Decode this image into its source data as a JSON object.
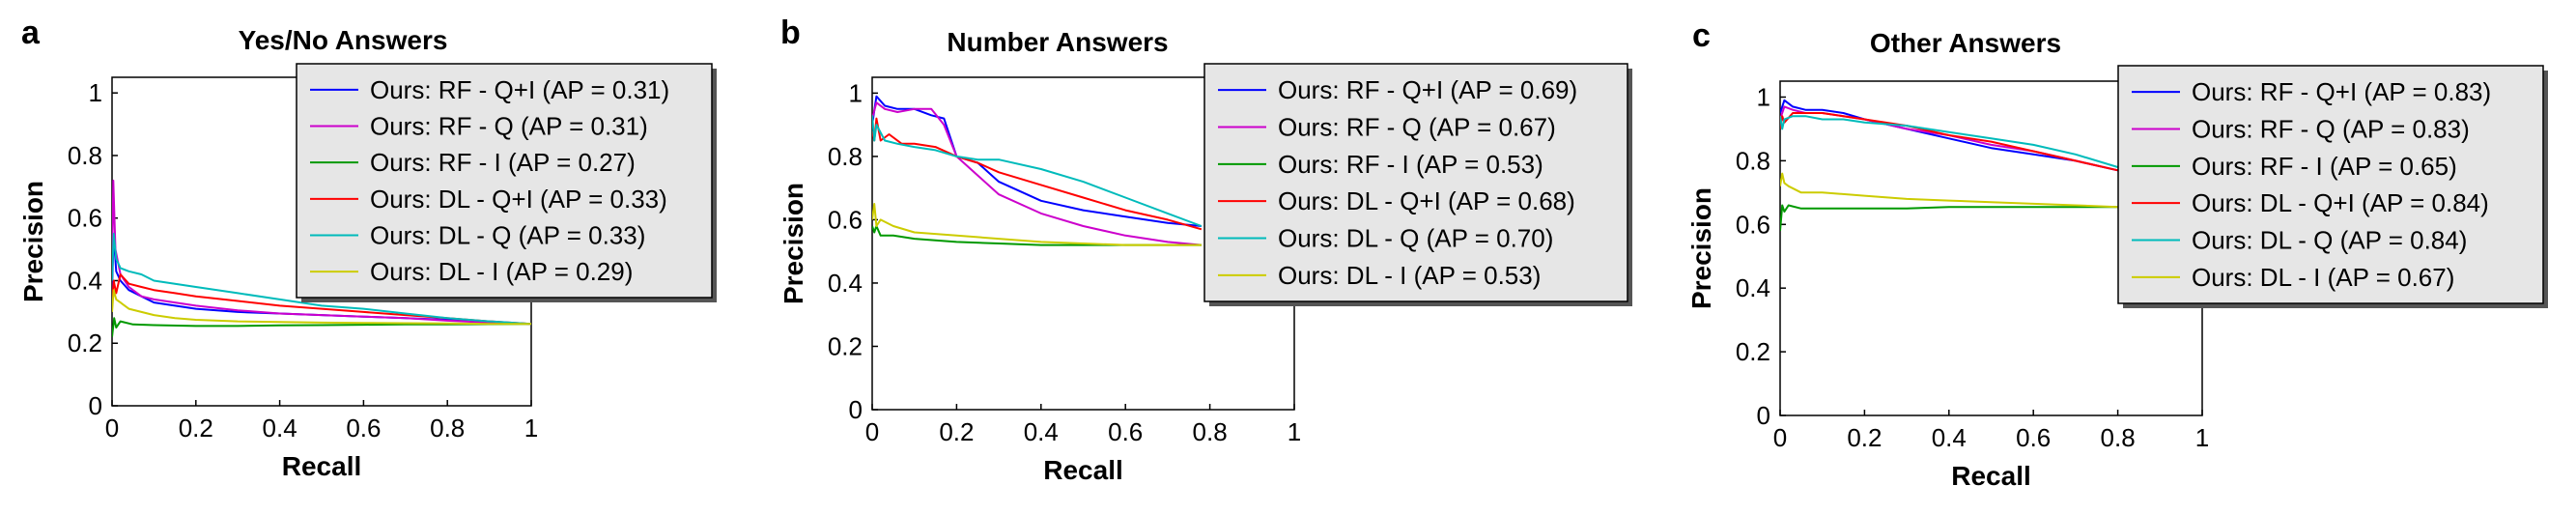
{
  "chart_data": [
    {
      "type": "line",
      "panel_label": "a",
      "title": "Yes/No Answers",
      "xlabel": "Recall",
      "ylabel": "Precision",
      "xlim": [
        0,
        1
      ],
      "ylim": [
        0,
        1.05
      ],
      "xticks": [
        0,
        0.2,
        0.4,
        0.6,
        0.8,
        1
      ],
      "xtick_labels": [
        "0",
        "0.2",
        "0.4",
        "0.6",
        "0.8",
        "1"
      ],
      "yticks": [
        0,
        0.2,
        0.4,
        0.6,
        0.8,
        1
      ],
      "ytick_labels": [
        "0",
        "0.2",
        "0.4",
        "0.6",
        "0.8",
        "1"
      ],
      "grid": false,
      "legend_position": "top-right",
      "series": [
        {
          "name": "Ours: RF - Q+I (AP = 0.31)",
          "color": "#0000ff",
          "x": [
            0,
            0.004,
            0.01,
            0.02,
            0.04,
            0.07,
            0.1,
            0.15,
            0.2,
            0.3,
            0.4,
            0.5,
            0.6,
            0.7,
            0.8,
            0.9,
            1.0
          ],
          "y": [
            0.37,
            0.55,
            0.43,
            0.4,
            0.37,
            0.35,
            0.33,
            0.32,
            0.31,
            0.3,
            0.295,
            0.29,
            0.285,
            0.28,
            0.275,
            0.268,
            0.262
          ]
        },
        {
          "name": "Ours: RF - Q (AP = 0.31)",
          "color": "#cc00cc",
          "x": [
            0,
            0.003,
            0.008,
            0.02,
            0.04,
            0.07,
            0.1,
            0.15,
            0.2,
            0.3,
            0.4,
            0.5,
            0.6,
            0.7,
            0.8,
            0.9,
            1.0
          ],
          "y": [
            0.45,
            0.72,
            0.5,
            0.42,
            0.38,
            0.35,
            0.34,
            0.33,
            0.32,
            0.305,
            0.295,
            0.29,
            0.285,
            0.28,
            0.272,
            0.266,
            0.262
          ]
        },
        {
          "name": "Ours: RF - I (AP = 0.27)",
          "color": "#009900",
          "x": [
            0,
            0.005,
            0.01,
            0.02,
            0.05,
            0.1,
            0.2,
            0.3,
            0.4,
            0.5,
            0.6,
            0.7,
            0.8,
            0.9,
            1.0
          ],
          "y": [
            0.22,
            0.28,
            0.25,
            0.27,
            0.26,
            0.258,
            0.255,
            0.255,
            0.257,
            0.258,
            0.259,
            0.26,
            0.26,
            0.261,
            0.262
          ]
        },
        {
          "name": "Ours: DL - Q+I (AP = 0.33)",
          "color": "#ff0000",
          "x": [
            0,
            0.004,
            0.01,
            0.02,
            0.04,
            0.07,
            0.1,
            0.15,
            0.2,
            0.3,
            0.4,
            0.5,
            0.6,
            0.7,
            0.8,
            0.9,
            1.0
          ],
          "y": [
            0.33,
            0.4,
            0.36,
            0.42,
            0.39,
            0.38,
            0.37,
            0.36,
            0.35,
            0.335,
            0.32,
            0.31,
            0.3,
            0.29,
            0.28,
            0.27,
            0.262
          ]
        },
        {
          "name": "Ours: DL - Q (AP = 0.33)",
          "color": "#00bbbb",
          "x": [
            0,
            0.004,
            0.01,
            0.02,
            0.04,
            0.07,
            0.1,
            0.15,
            0.2,
            0.3,
            0.4,
            0.5,
            0.6,
            0.7,
            0.8,
            0.9,
            1.0
          ],
          "y": [
            0.4,
            0.55,
            0.47,
            0.44,
            0.43,
            0.42,
            0.4,
            0.39,
            0.38,
            0.36,
            0.34,
            0.32,
            0.31,
            0.295,
            0.28,
            0.27,
            0.262
          ]
        },
        {
          "name": "Ours: DL - I (AP = 0.29)",
          "color": "#cccc00",
          "x": [
            0,
            0.004,
            0.01,
            0.02,
            0.04,
            0.07,
            0.1,
            0.15,
            0.2,
            0.3,
            0.4,
            0.5,
            0.6,
            0.7,
            0.8,
            0.9,
            1.0
          ],
          "y": [
            0.3,
            0.37,
            0.34,
            0.33,
            0.31,
            0.3,
            0.29,
            0.28,
            0.275,
            0.27,
            0.268,
            0.266,
            0.265,
            0.264,
            0.263,
            0.262,
            0.262
          ]
        }
      ]
    },
    {
      "type": "line",
      "panel_label": "b",
      "title": "Number Answers",
      "xlabel": "Recall",
      "ylabel": "Precision",
      "xlim": [
        0,
        1
      ],
      "ylim": [
        0,
        1.05
      ],
      "xticks": [
        0,
        0.2,
        0.4,
        0.6,
        0.8,
        1
      ],
      "xtick_labels": [
        "0",
        "0.2",
        "0.4",
        "0.6",
        "0.8",
        "1"
      ],
      "yticks": [
        0,
        0.2,
        0.4,
        0.6,
        0.8,
        1
      ],
      "ytick_labels": [
        "0",
        "0.2",
        "0.4",
        "0.6",
        "0.8",
        "1"
      ],
      "grid": false,
      "legend_position": "top-right",
      "series": [
        {
          "name": "Ours: RF - Q+I (AP = 0.69)",
          "color": "#0000ff",
          "x": [
            0,
            0.01,
            0.03,
            0.06,
            0.1,
            0.14,
            0.17,
            0.2,
            0.25,
            0.3,
            0.35,
            0.4,
            0.5,
            0.6,
            0.7,
            0.78
          ],
          "y": [
            0.9,
            0.99,
            0.96,
            0.95,
            0.95,
            0.93,
            0.92,
            0.8,
            0.78,
            0.72,
            0.69,
            0.66,
            0.63,
            0.61,
            0.59,
            0.58
          ]
        },
        {
          "name": "Ours: RF - Q (AP = 0.67)",
          "color": "#cc00cc",
          "x": [
            0,
            0.01,
            0.03,
            0.06,
            0.1,
            0.14,
            0.17,
            0.2,
            0.25,
            0.3,
            0.4,
            0.5,
            0.6,
            0.7,
            0.78
          ],
          "y": [
            0.92,
            0.97,
            0.95,
            0.94,
            0.95,
            0.95,
            0.9,
            0.8,
            0.74,
            0.68,
            0.62,
            0.58,
            0.55,
            0.53,
            0.52
          ]
        },
        {
          "name": "Ours: RF - I (AP = 0.53)",
          "color": "#009900",
          "x": [
            0,
            0.005,
            0.01,
            0.02,
            0.05,
            0.1,
            0.2,
            0.3,
            0.4,
            0.5,
            0.6,
            0.7,
            0.78
          ],
          "y": [
            0.58,
            0.56,
            0.58,
            0.55,
            0.55,
            0.54,
            0.53,
            0.525,
            0.52,
            0.52,
            0.52,
            0.52,
            0.52
          ]
        },
        {
          "name": "Ours: DL - Q+I (AP = 0.68)",
          "color": "#ff0000",
          "x": [
            0,
            0.005,
            0.01,
            0.02,
            0.04,
            0.07,
            0.1,
            0.15,
            0.2,
            0.25,
            0.3,
            0.4,
            0.5,
            0.6,
            0.7,
            0.78
          ],
          "y": [
            0.88,
            0.85,
            0.92,
            0.85,
            0.87,
            0.84,
            0.84,
            0.83,
            0.8,
            0.78,
            0.75,
            0.71,
            0.67,
            0.63,
            0.6,
            0.57
          ]
        },
        {
          "name": "Ours: DL - Q (AP = 0.70)",
          "color": "#00bbbb",
          "x": [
            0,
            0.005,
            0.01,
            0.03,
            0.06,
            0.1,
            0.15,
            0.2,
            0.25,
            0.3,
            0.4,
            0.5,
            0.6,
            0.7,
            0.78
          ],
          "y": [
            0.93,
            0.85,
            0.9,
            0.85,
            0.84,
            0.83,
            0.82,
            0.8,
            0.79,
            0.79,
            0.76,
            0.72,
            0.67,
            0.62,
            0.58
          ]
        },
        {
          "name": "Ours: DL - I (AP = 0.53)",
          "color": "#cccc00",
          "x": [
            0,
            0.005,
            0.01,
            0.02,
            0.05,
            0.1,
            0.2,
            0.3,
            0.4,
            0.5,
            0.6,
            0.7,
            0.78
          ],
          "y": [
            0.6,
            0.65,
            0.58,
            0.6,
            0.58,
            0.56,
            0.55,
            0.54,
            0.53,
            0.525,
            0.52,
            0.52,
            0.52
          ]
        }
      ]
    },
    {
      "type": "line",
      "panel_label": "c",
      "title": "Other Answers",
      "xlabel": "Recall",
      "ylabel": "Precision",
      "xlim": [
        0,
        1
      ],
      "ylim": [
        0,
        1.05
      ],
      "xticks": [
        0,
        0.2,
        0.4,
        0.6,
        0.8,
        1
      ],
      "xtick_labels": [
        "0",
        "0.2",
        "0.4",
        "0.6",
        "0.8",
        "1"
      ],
      "yticks": [
        0,
        0.2,
        0.4,
        0.6,
        0.8,
        1
      ],
      "ytick_labels": [
        "0",
        "0.2",
        "0.4",
        "0.6",
        "0.8",
        "1"
      ],
      "grid": false,
      "legend_position": "top-right",
      "series": [
        {
          "name": "Ours: RF - Q+I (AP = 0.83)",
          "color": "#0000ff",
          "x": [
            0,
            0.01,
            0.03,
            0.06,
            0.1,
            0.15,
            0.2,
            0.3,
            0.4,
            0.5,
            0.6,
            0.7,
            0.8
          ],
          "y": [
            0.95,
            0.99,
            0.97,
            0.96,
            0.96,
            0.95,
            0.93,
            0.9,
            0.87,
            0.84,
            0.82,
            0.8,
            0.77
          ]
        },
        {
          "name": "Ours: RF - Q (AP = 0.83)",
          "color": "#cc00cc",
          "x": [
            0,
            0.01,
            0.03,
            0.06,
            0.1,
            0.15,
            0.2,
            0.3,
            0.4,
            0.5,
            0.6,
            0.7,
            0.8
          ],
          "y": [
            0.93,
            0.97,
            0.96,
            0.95,
            0.95,
            0.94,
            0.93,
            0.9,
            0.88,
            0.85,
            0.83,
            0.8,
            0.77
          ]
        },
        {
          "name": "Ours: RF - I (AP = 0.65)",
          "color": "#009900",
          "x": [
            0,
            0.005,
            0.01,
            0.02,
            0.05,
            0.1,
            0.2,
            0.3,
            0.4,
            0.5,
            0.6,
            0.7,
            0.8
          ],
          "y": [
            0.58,
            0.66,
            0.64,
            0.66,
            0.65,
            0.65,
            0.65,
            0.65,
            0.655,
            0.655,
            0.655,
            0.655,
            0.655
          ]
        },
        {
          "name": "Ours: DL - Q+I (AP = 0.84)",
          "color": "#ff0000",
          "x": [
            0,
            0.005,
            0.01,
            0.03,
            0.06,
            0.1,
            0.15,
            0.2,
            0.3,
            0.4,
            0.5,
            0.6,
            0.7,
            0.8
          ],
          "y": [
            0.9,
            0.94,
            0.92,
            0.95,
            0.95,
            0.95,
            0.94,
            0.93,
            0.91,
            0.88,
            0.86,
            0.83,
            0.8,
            0.77
          ]
        },
        {
          "name": "Ours: DL - Q (AP = 0.84)",
          "color": "#00bbbb",
          "x": [
            0,
            0.005,
            0.01,
            0.03,
            0.06,
            0.1,
            0.15,
            0.2,
            0.3,
            0.4,
            0.5,
            0.6,
            0.7,
            0.8
          ],
          "y": [
            0.94,
            0.9,
            0.93,
            0.94,
            0.94,
            0.93,
            0.93,
            0.92,
            0.91,
            0.89,
            0.87,
            0.85,
            0.82,
            0.78
          ]
        },
        {
          "name": "Ours: DL - I (AP = 0.67)",
          "color": "#cccc00",
          "x": [
            0,
            0.005,
            0.01,
            0.02,
            0.05,
            0.1,
            0.2,
            0.3,
            0.4,
            0.5,
            0.6,
            0.7,
            0.8
          ],
          "y": [
            0.72,
            0.76,
            0.73,
            0.72,
            0.7,
            0.7,
            0.69,
            0.68,
            0.675,
            0.67,
            0.665,
            0.66,
            0.655
          ]
        }
      ]
    }
  ]
}
